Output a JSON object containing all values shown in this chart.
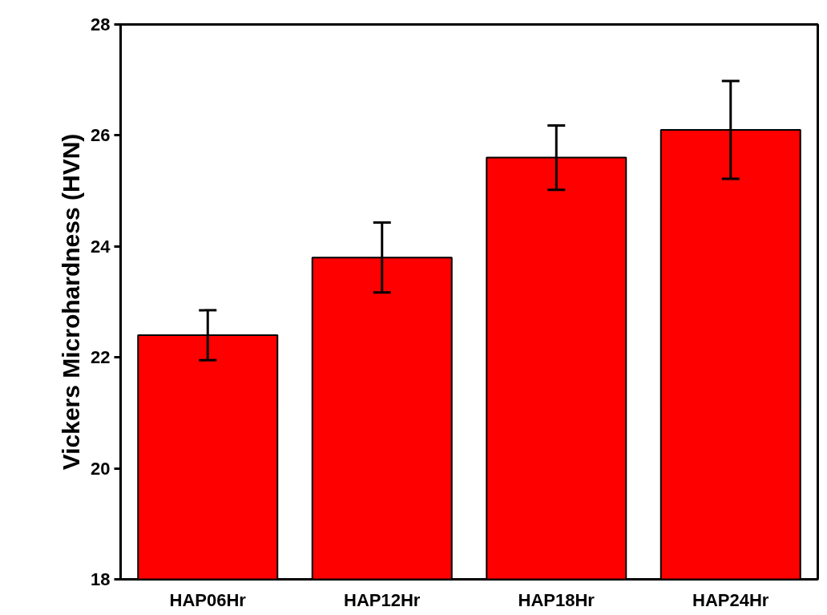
{
  "chart_data": {
    "type": "bar",
    "ylabel": "Vickers Microhardness (HVN)",
    "categories": [
      "HAP06Hr",
      "HAP12Hr",
      "HAP18Hr",
      "HAP24Hr"
    ],
    "values": [
      22.4,
      23.8,
      25.6,
      26.1
    ],
    "errors": [
      0.45,
      0.63,
      0.58,
      0.88
    ],
    "color": "#ff0000",
    "ylim": [
      18,
      28
    ],
    "yticks": [
      18,
      20,
      22,
      24,
      26,
      28
    ],
    "grid": false
  }
}
